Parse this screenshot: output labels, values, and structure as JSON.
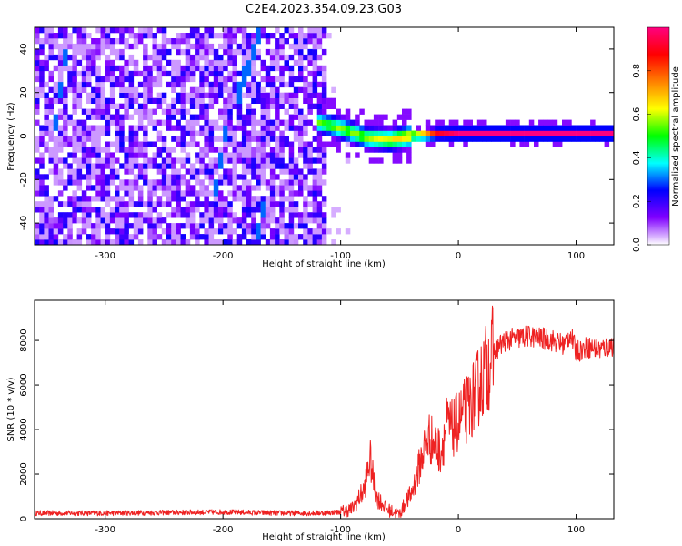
{
  "title": "C2E4.2023.354.09.23.G03",
  "chart_data": [
    {
      "type": "heatmap",
      "title": "C2E4.2023.354.09.23.G03",
      "xlabel": "Height of straight line (km)",
      "ylabel": "Frequency (Hz)",
      "xlim": [
        -360,
        132
      ],
      "ylim": [
        -50,
        50
      ],
      "x_ticks": [
        -300,
        -200,
        -100,
        0,
        100
      ],
      "y_ticks": [
        -40,
        -20,
        0,
        20,
        40
      ],
      "colorbar": {
        "label": "Normalized spectral amplitude",
        "range": [
          0,
          1
        ],
        "ticks": [
          0.0,
          0.2,
          0.4,
          0.6,
          0.8
        ],
        "colors": [
          "#ffffff",
          "#8000ff",
          "#0000ff",
          "#00ffff",
          "#00ff00",
          "#ffff00",
          "#ff8000",
          "#ff0000",
          "#ff0080"
        ]
      },
      "features": {
        "noise_region_x": [
          -360,
          -112
        ],
        "noise_level": 0.2,
        "streaks": [
          {
            "x": [
              -345,
              -335
            ],
            "y": [
              0,
              40
            ]
          },
          {
            "x": [
              -210,
              -200
            ],
            "y": [
              -30,
              0
            ]
          },
          {
            "x": [
              -190,
              -182
            ],
            "y": [
              15,
              30
            ]
          },
          {
            "x": [
              -180,
              -172
            ],
            "y": [
              30,
              45
            ]
          },
          {
            "x": [
              -172,
              -166
            ],
            "y": [
              -45,
              -30
            ]
          }
        ],
        "signal_line": [
          [
            -120,
            5,
            0.45
          ],
          [
            -100,
            2,
            0.5
          ],
          [
            -80,
            -2,
            0.5
          ],
          [
            -60,
            -3,
            0.55
          ],
          [
            -40,
            -1,
            0.65
          ],
          [
            -20,
            0,
            0.8
          ],
          [
            0,
            0,
            0.9
          ],
          [
            50,
            0,
            0.9
          ],
          [
            132,
            0,
            0.9
          ]
        ]
      }
    },
    {
      "type": "line",
      "xlabel": "Height of straight line (km)",
      "ylabel": "SNR (10 * v/v)",
      "xlim": [
        -360,
        132
      ],
      "ylim": [
        0,
        9800
      ],
      "x_ticks": [
        -300,
        -200,
        -100,
        0,
        100
      ],
      "y_ticks": [
        0,
        2000,
        4000,
        6000,
        8000
      ],
      "color": "#ee2222",
      "series": [
        {
          "x": [
            -360,
            -300,
            -200,
            -150,
            -120,
            -100,
            -90,
            -80,
            -75,
            -70,
            -60,
            -55,
            -50,
            -45,
            -40,
            -35,
            -30,
            -25,
            -20,
            -15,
            -10,
            -5,
            0,
            10,
            20,
            30,
            40,
            60,
            80,
            90,
            95,
            100,
            110,
            120,
            132
          ],
          "y": [
            250,
            250,
            300,
            250,
            250,
            300,
            450,
            1300,
            2700,
            1000,
            400,
            300,
            200,
            700,
            1100,
            2000,
            3000,
            3700,
            3300,
            3000,
            4200,
            4000,
            4400,
            5100,
            6300,
            7500,
            8000,
            8200,
            8000,
            7800,
            8300,
            7500,
            7700,
            7600,
            7800
          ]
        }
      ]
    }
  ]
}
